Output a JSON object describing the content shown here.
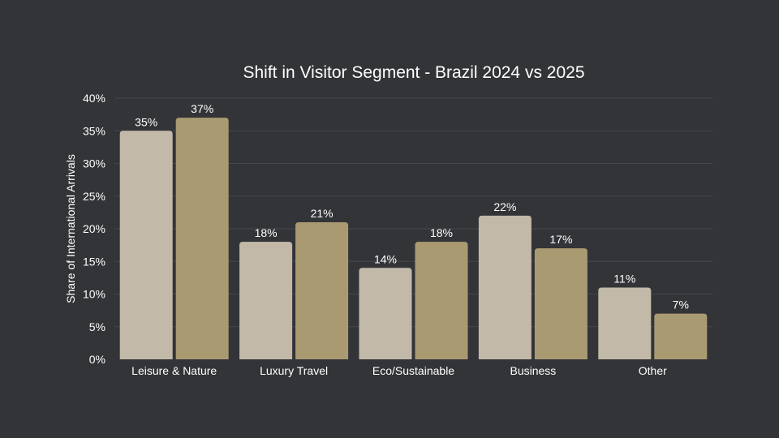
{
  "colors": {
    "background": "#333438",
    "series_2024": "#c2b9a8",
    "series_2025": "#aa9a72",
    "grid": "#46474c",
    "text": "#ffffff"
  },
  "chart_data": {
    "type": "bar",
    "title": "Shift in Visitor Segment - Brazil 2024 vs 2025",
    "xlabel": "",
    "ylabel": "Share of International Arrivals",
    "ylim": [
      0,
      40
    ],
    "yticks": [
      "0%",
      "5%",
      "10%",
      "15%",
      "20%",
      "25%",
      "30%",
      "35%",
      "40%"
    ],
    "ytick_values": [
      0,
      5,
      10,
      15,
      20,
      25,
      30,
      35,
      40
    ],
    "categories": [
      "Leisure & Nature",
      "Luxury Travel",
      "Eco/Sustainable",
      "Business",
      "Other"
    ],
    "series": [
      {
        "key": "2024",
        "values": [
          35,
          18,
          14,
          22,
          11
        ],
        "labels": [
          "35%",
          "18%",
          "14%",
          "22%",
          "11%"
        ],
        "color": "#c2b9a8"
      },
      {
        "key": "2025",
        "values": [
          37,
          21,
          18,
          17,
          7
        ],
        "labels": [
          "37%",
          "21%",
          "18%",
          "17%",
          "7%"
        ],
        "color": "#aa9a72"
      }
    ],
    "grid": true,
    "legend": "none"
  }
}
